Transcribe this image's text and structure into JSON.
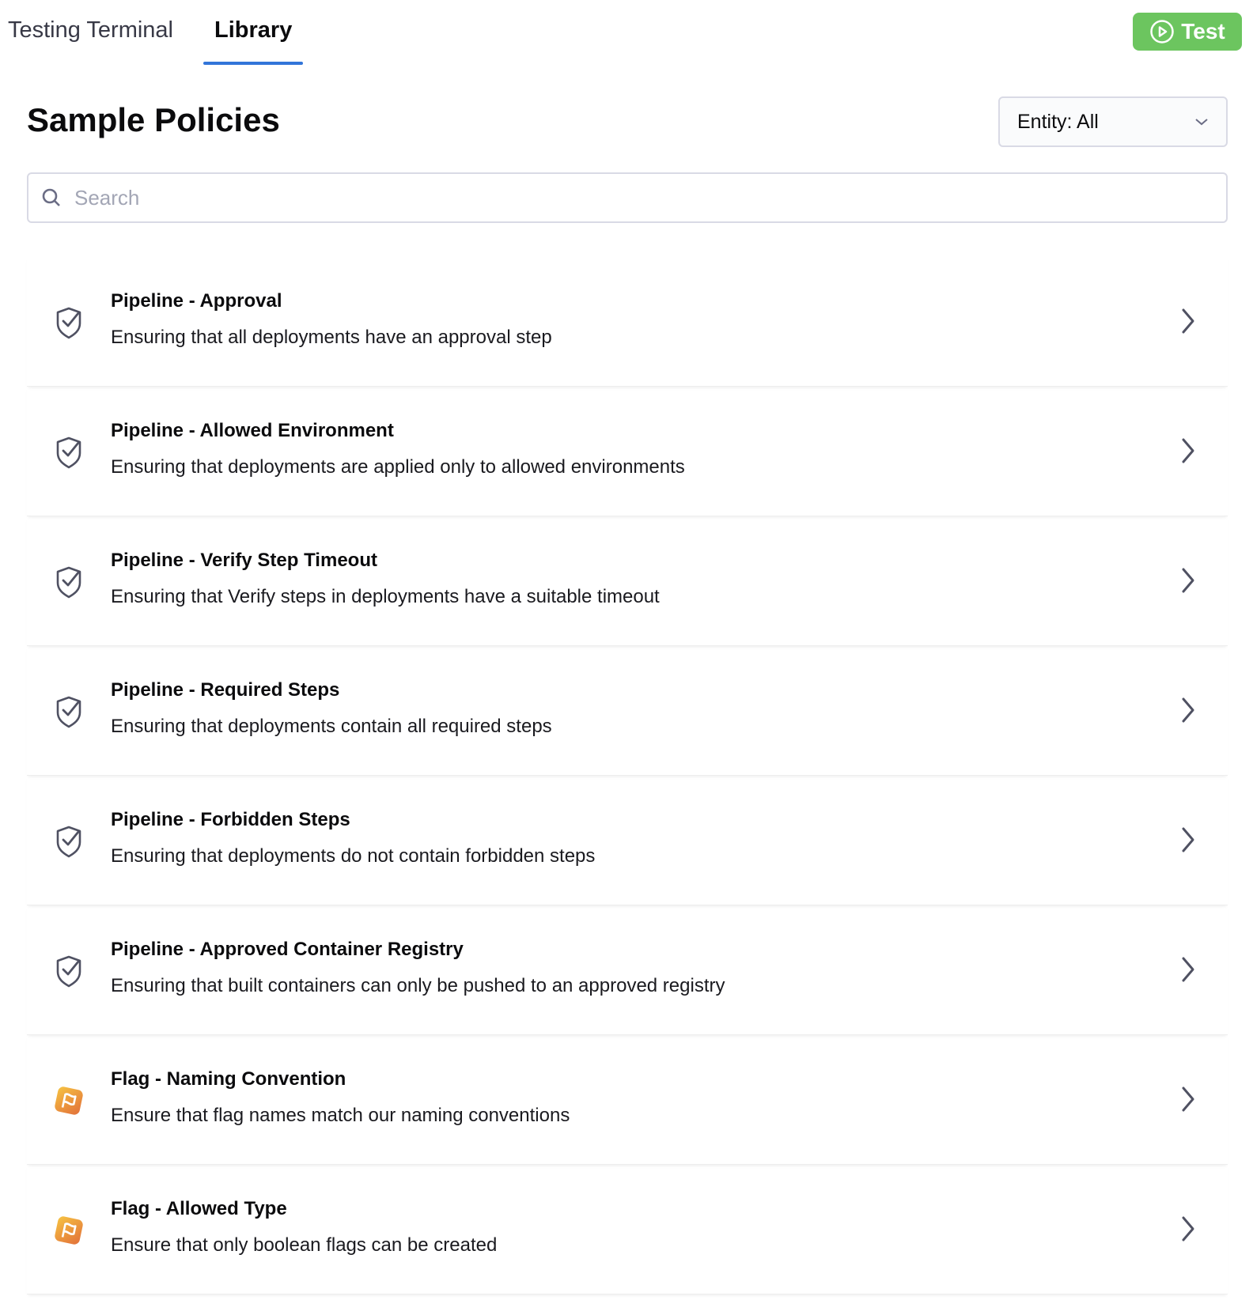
{
  "tabs": [
    {
      "label": "Testing Terminal",
      "active": false
    },
    {
      "label": "Library",
      "active": true
    }
  ],
  "test_button": {
    "label": "Test",
    "icon": "play-circle-icon",
    "color": "#6cc55f"
  },
  "title": "Sample Policies",
  "entity_filter": {
    "label": "Entity: All"
  },
  "search": {
    "placeholder": "Search",
    "value": ""
  },
  "accent": "#3275d9",
  "policies": [
    {
      "name": "Pipeline - Approval",
      "description": "Ensuring that all deployments have an approval step",
      "icon": "shield-check-icon"
    },
    {
      "name": "Pipeline - Allowed Environment",
      "description": "Ensuring that deployments are applied only to allowed environments",
      "icon": "shield-check-icon"
    },
    {
      "name": "Pipeline - Verify Step Timeout",
      "description": "Ensuring that Verify steps in deployments have a suitable timeout",
      "icon": "shield-check-icon"
    },
    {
      "name": "Pipeline - Required Steps",
      "description": "Ensuring that deployments contain all required steps",
      "icon": "shield-check-icon"
    },
    {
      "name": "Pipeline - Forbidden Steps",
      "description": "Ensuring that deployments do not contain forbidden steps",
      "icon": "shield-check-icon"
    },
    {
      "name": "Pipeline - Approved Container Registry",
      "description": "Ensuring that built containers can only be pushed to an approved registry",
      "icon": "shield-check-icon"
    },
    {
      "name": "Flag - Naming Convention",
      "description": "Ensure that flag names match our naming conventions",
      "icon": "feature-flag-icon"
    },
    {
      "name": "Flag - Allowed Type",
      "description": "Ensure that only boolean flags can be created",
      "icon": "feature-flag-icon"
    }
  ]
}
